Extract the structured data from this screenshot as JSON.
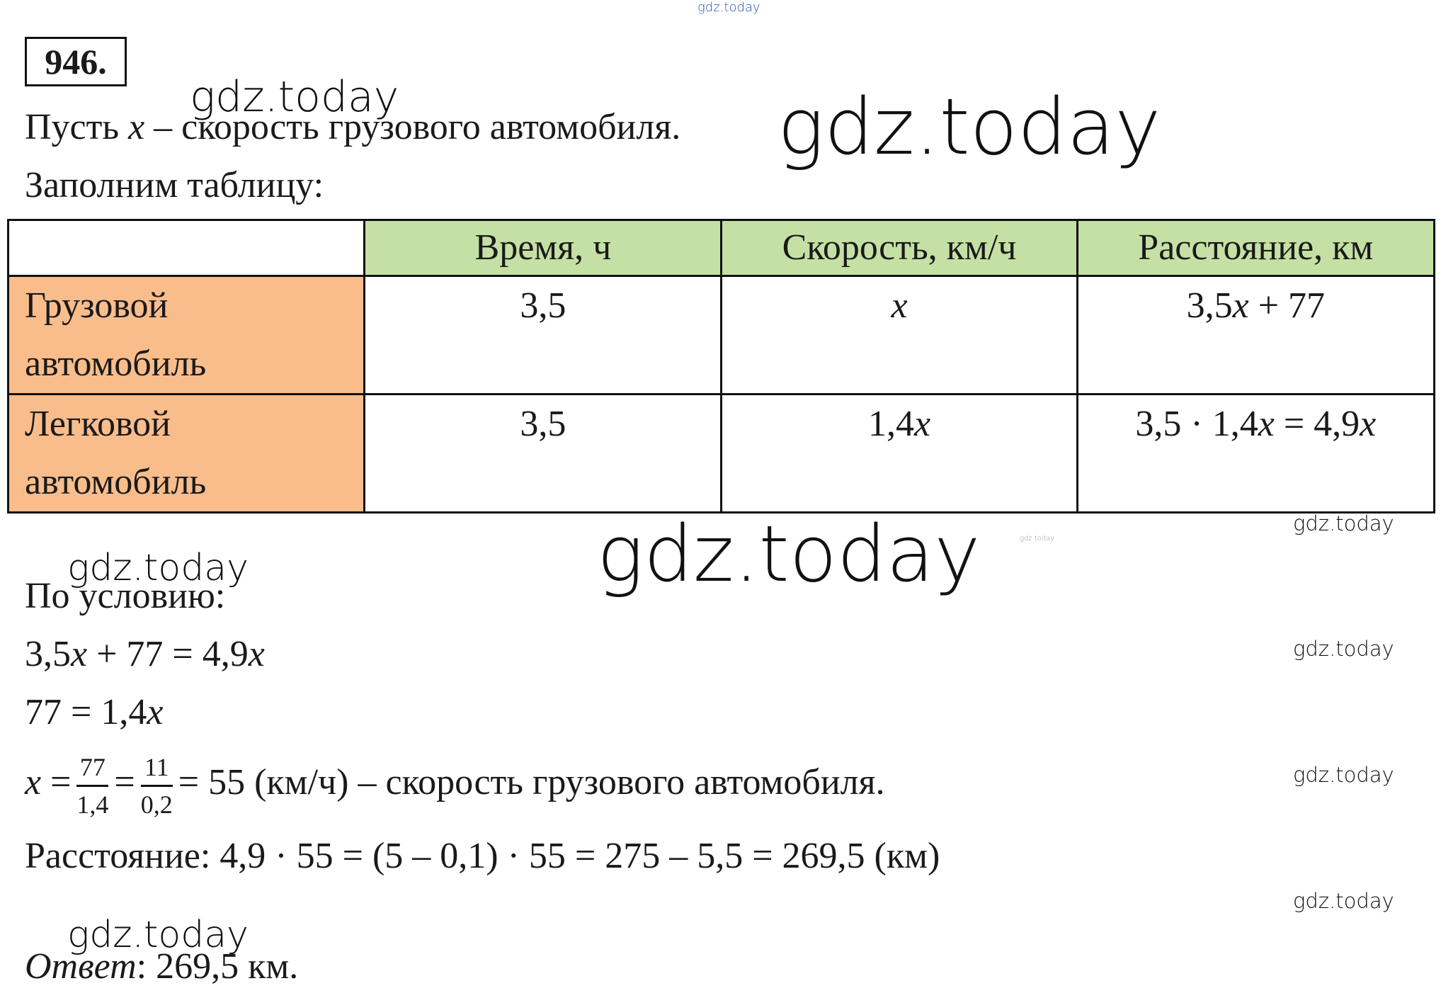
{
  "problem_number": "946.",
  "intro": "Пусть x – скорость грузового автомобиля.",
  "table_intro": "Заполним таблицу:",
  "table": {
    "header": [
      "",
      "Время, ч",
      "Скорость, км/ч",
      "Расстояние, км"
    ],
    "rows": [
      [
        [
          "Грузовой",
          "автомобиль"
        ],
        "3,5",
        "x",
        "3,5x + 77"
      ],
      [
        [
          "Легковой",
          "автомобиль"
        ],
        "3,5",
        "1,4x",
        "3,5 · 1,4x = 4,9x"
      ]
    ]
  },
  "condition": "По условию:",
  "equations": [
    "3,5x + 77 = 4,9x",
    "77 = 1,4x"
  ],
  "solution": {
    "lhs": "x =",
    "frac1": {
      "num": "77",
      "den": "1,4"
    },
    "eq": "=",
    "frac2": {
      "num": "11",
      "den": "0,2"
    },
    "rest": "= 55 (км/ч) – скорость грузового автомобиля."
  },
  "distance": "Расстояние: 4,9 · 55 = (5 – 0,1) · 55 = 275 – 5,5 = 269,5 (км)",
  "answer": {
    "label": "Ответ",
    "text": ": 269,5 км."
  },
  "watermarks": [
    "gdz.today",
    "gdz.today",
    "gdz.today",
    "gdz.today",
    "gdz.today",
    "gdz.today",
    "gdz.today",
    "gdz.today",
    "gdz.today",
    "gdz.today",
    "gdz.today"
  ]
}
